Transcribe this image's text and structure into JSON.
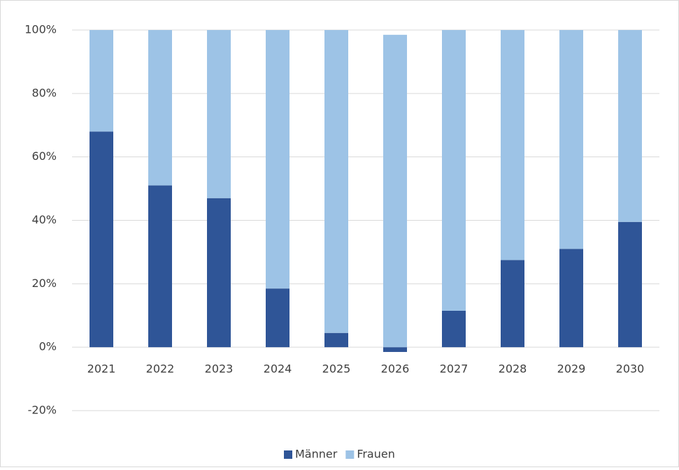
{
  "chart_data": {
    "type": "stacked_bar",
    "categories": [
      "2021",
      "2022",
      "2023",
      "2024",
      "2025",
      "2026",
      "2027",
      "2028",
      "2029",
      "2030"
    ],
    "series": [
      {
        "name": "Männer",
        "color": "#2f5597",
        "values": [
          68,
          51,
          47,
          18.5,
          4.5,
          -1.5,
          11.5,
          27.5,
          31,
          39.5
        ]
      },
      {
        "name": "Frauen",
        "color": "#9dc3e6",
        "values": [
          32,
          49,
          53,
          81.5,
          95.5,
          98.5,
          88.5,
          72.5,
          69,
          60.5
        ]
      }
    ],
    "ylim": [
      -20,
      100
    ],
    "yticks": [
      {
        "value": -20,
        "label": "-20%"
      },
      {
        "value": 0,
        "label": "0%"
      },
      {
        "value": 20,
        "label": "20%"
      },
      {
        "value": 40,
        "label": "40%"
      },
      {
        "value": 60,
        "label": "60%"
      },
      {
        "value": 80,
        "label": "80%"
      },
      {
        "value": 100,
        "label": "100%"
      }
    ],
    "grid": true,
    "legend": "bottom"
  }
}
